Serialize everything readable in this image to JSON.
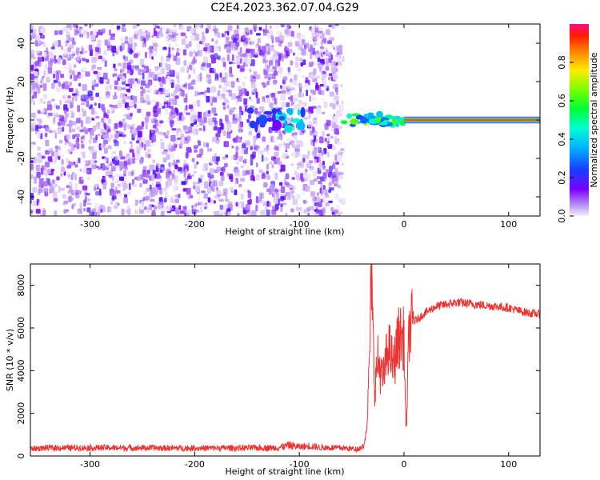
{
  "figure": {
    "title": "C2E4.2023.362.07.04.G29"
  },
  "chart_data": [
    {
      "type": "heatmap",
      "title": "C2E4.2023.362.07.04.G29",
      "xlabel": "Height of straight line (km)",
      "ylabel": "Frequency (Hz)",
      "xlim": [
        -357,
        130
      ],
      "ylim": [
        -50,
        50
      ],
      "x_ticks": [
        -300,
        -200,
        -100,
        0,
        100
      ],
      "y_ticks": [
        -40,
        -20,
        0,
        20,
        40
      ],
      "colorbar": {
        "label": "Normalized spectral amplitude",
        "range": [
          0,
          1
        ],
        "ticks": [
          "0.0",
          "0.2",
          "0.4",
          "0.6",
          "0.8"
        ]
      },
      "regions": [
        {
          "name": "noise",
          "x_range": [
            -357,
            -58
          ],
          "description_values": {
            "amplitude_max": 0.2
          }
        },
        {
          "name": "noise-gap",
          "x_range": [
            -105,
            -99
          ],
          "amplitude": 0.05
        },
        {
          "name": "noise-gap",
          "x_range": [
            -63,
            -58
          ],
          "amplitude": 0.05
        },
        {
          "name": "blob",
          "x_center": -110,
          "y_center": 0,
          "amplitude": 0.45
        },
        {
          "name": "blob",
          "x_center": -132,
          "y_center": 0,
          "amplitude": 0.25
        },
        {
          "name": "tone-start",
          "x_range": [
            -58,
            0
          ],
          "y_center": 0,
          "amplitude": 0.6
        },
        {
          "name": "tone",
          "x_range": [
            0,
            130
          ],
          "y_center": 0,
          "amplitude": 0.95
        }
      ],
      "grid": false
    },
    {
      "type": "line",
      "xlabel": "Height of straight line (km)",
      "ylabel": "SNR (10 * v/v)",
      "xlim": [
        -357,
        130
      ],
      "ylim": [
        0,
        9000
      ],
      "x_ticks": [
        -300,
        -200,
        -100,
        0,
        100
      ],
      "y_ticks": [
        0,
        2000,
        4000,
        6000,
        8000
      ],
      "color": "#ee3333",
      "series": [
        {
          "x": [
            -357,
            -340,
            -300,
            -250,
            -200,
            -150,
            -120,
            -110,
            -100,
            -90,
            -80,
            -60,
            -45,
            -38,
            -35,
            -33,
            -31,
            -30,
            -28,
            -25,
            -20,
            -15,
            -10,
            -5,
            0,
            2,
            5,
            10,
            20,
            30,
            40,
            50,
            60,
            70,
            80,
            90,
            100,
            110,
            120,
            130
          ],
          "y": [
            380,
            420,
            430,
            420,
            410,
            420,
            430,
            560,
            470,
            530,
            440,
            420,
            360,
            500,
            1800,
            4400,
            8800,
            6200,
            3200,
            4500,
            3500,
            5200,
            4200,
            5600,
            5500,
            1000,
            6000,
            6300,
            6700,
            7000,
            7100,
            7200,
            7150,
            7100,
            7050,
            7000,
            6950,
            6800,
            6700,
            6650
          ]
        }
      ],
      "grid": false
    }
  ]
}
